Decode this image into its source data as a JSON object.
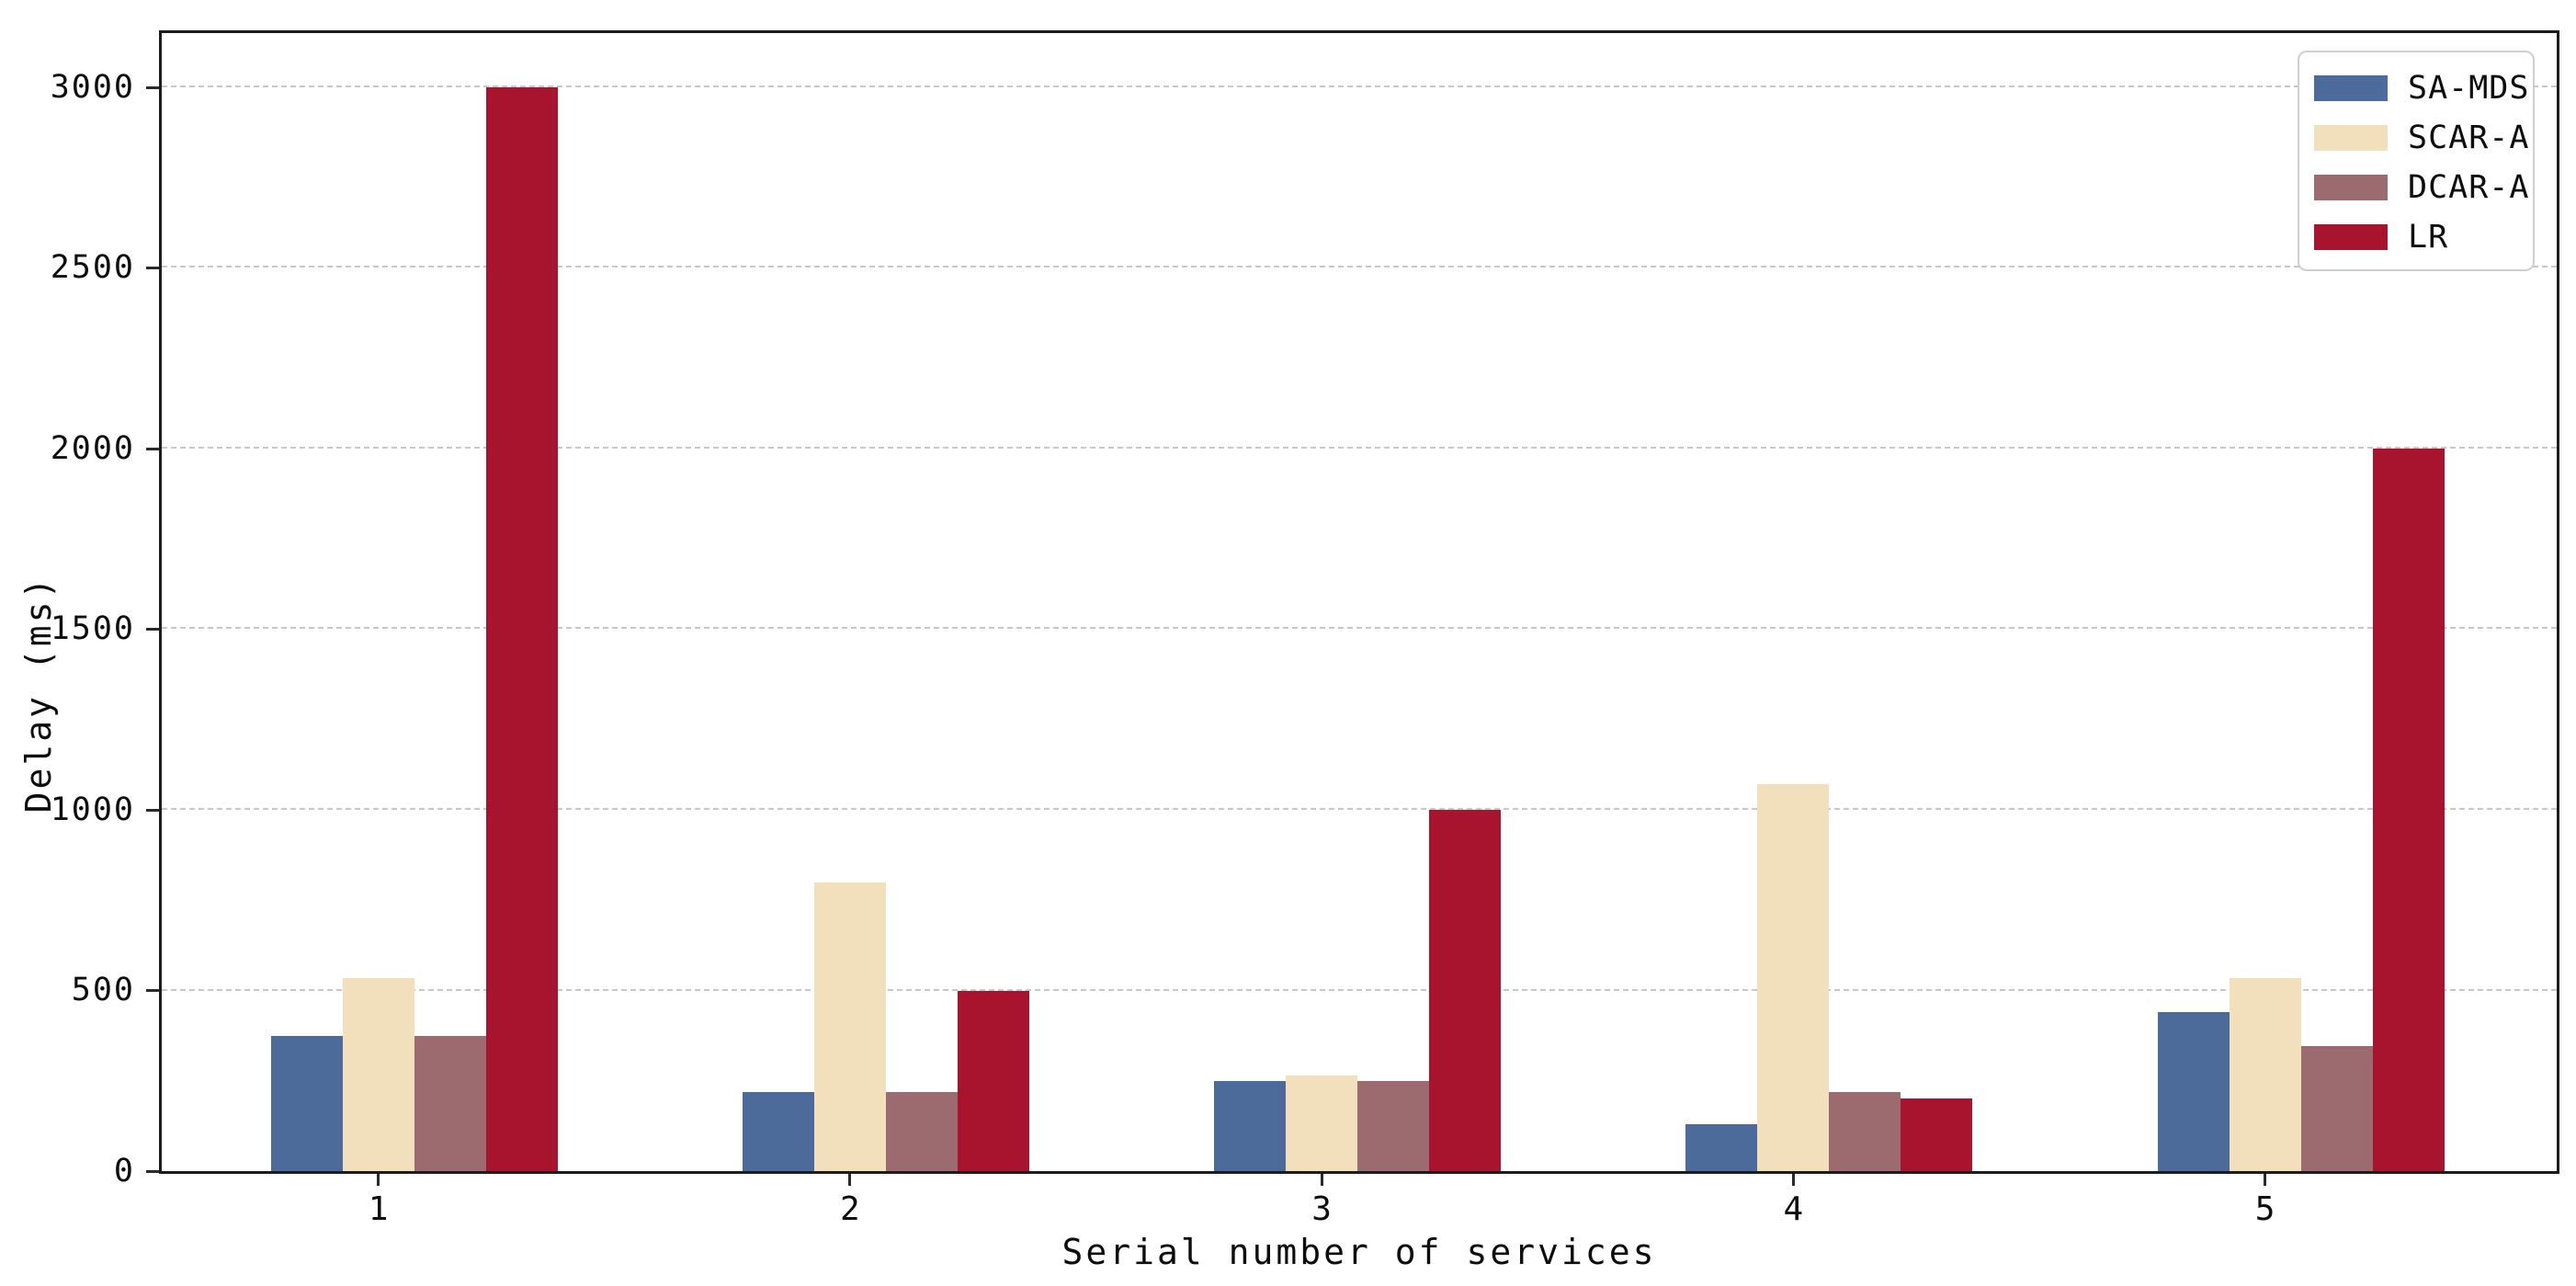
{
  "chart_data": {
    "type": "bar",
    "title": "",
    "xlabel": "Serial number of services",
    "ylabel": "Delay (ms)",
    "categories": [
      "1",
      "2",
      "3",
      "4",
      "5"
    ],
    "series": [
      {
        "name": "SA-MDS",
        "color": "#4D6B9A",
        "values": [
          375,
          220,
          250,
          130,
          440
        ]
      },
      {
        "name": "SCAR-A",
        "color": "#F2DFBB",
        "values": [
          535,
          800,
          265,
          1070,
          535
        ]
      },
      {
        "name": "DCAR-A",
        "color": "#9B6B6F",
        "values": [
          375,
          220,
          250,
          220,
          345
        ]
      },
      {
        "name": "LR",
        "color": "#A8132E",
        "values": [
          3000,
          500,
          1000,
          200,
          2000
        ]
      }
    ],
    "y_ticks": [
      0,
      500,
      1000,
      1500,
      2000,
      2500,
      3000
    ],
    "ylim": [
      0,
      3150
    ],
    "grid": "horizontal-dashed",
    "gridline_color": "#c7c7c7",
    "legend_position": "top-right"
  }
}
